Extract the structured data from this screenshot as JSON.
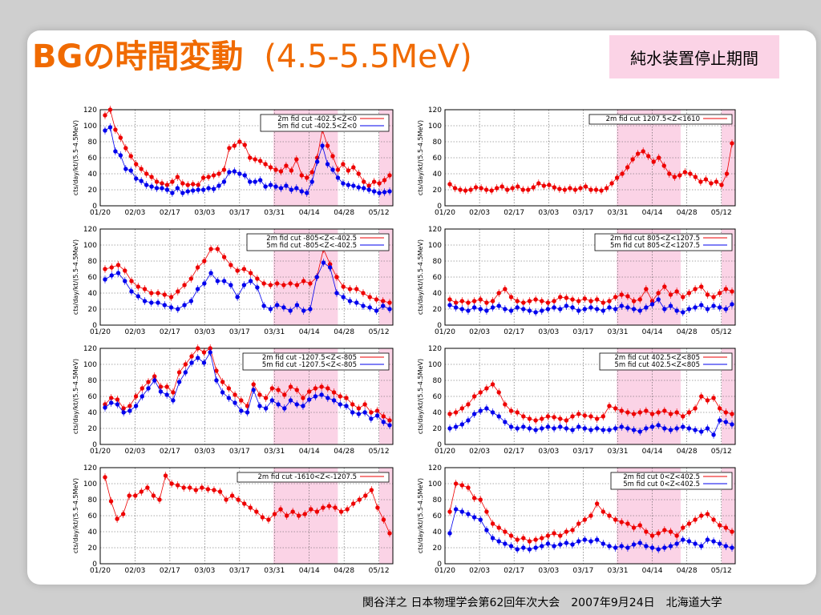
{
  "slide": {
    "title_main": "BGの時間変動",
    "title_sub": "(4.5-5.5MeV)",
    "note": "純水装置停止期間",
    "footer": "関谷洋之 日本物理学会第62回年次大会　2007年9月24日　北海道大学",
    "colors": {
      "title": "#f06a00",
      "red": "#ee0000",
      "blue": "#0000ee",
      "shade": "#fbd3e6"
    }
  },
  "chart_data": [
    {
      "type": "scatter",
      "ylabel": "cts/day/kt/(5.5-4.5MeV)",
      "ylim": [
        0,
        120
      ],
      "yticks": [
        0,
        20,
        40,
        60,
        80,
        100,
        120
      ],
      "xticks": [
        "01/20",
        "02/03",
        "02/17",
        "03/03",
        "03/17",
        "03/31",
        "04/14",
        "04/28",
        "05/12"
      ],
      "series": [
        {
          "name": "2m fid cut -402.5<Z<0",
          "color": "red",
          "values": [
            113,
            120,
            95,
            85,
            72,
            62,
            52,
            46,
            40,
            36,
            30,
            28,
            26,
            30,
            36,
            28,
            26,
            27,
            26,
            35,
            36,
            38,
            40,
            45,
            72,
            75,
            80,
            76,
            60,
            58,
            56,
            52,
            48,
            45,
            43,
            50,
            44,
            58,
            38,
            35,
            42,
            60,
            95,
            75,
            62,
            45,
            52,
            44,
            48,
            40,
            30,
            25,
            30,
            28,
            32,
            38
          ]
        },
        {
          "name": "5m fid cut -402.5<Z<0",
          "color": "blue",
          "values": [
            94,
            98,
            68,
            63,
            46,
            44,
            34,
            31,
            26,
            24,
            22,
            22,
            20,
            16,
            22,
            16,
            18,
            19,
            20,
            20,
            22,
            21,
            25,
            30,
            42,
            43,
            40,
            38,
            30,
            30,
            32,
            24,
            26,
            24,
            22,
            25,
            20,
            22,
            18,
            16,
            30,
            55,
            75,
            52,
            45,
            35,
            28,
            26,
            25,
            23,
            22,
            20,
            18,
            16,
            17,
            18
          ]
        }
      ]
    },
    {
      "type": "scatter",
      "ylabel": "cts/day/kt/(5.5-4.5MeV)",
      "ylim": [
        0,
        120
      ],
      "yticks": [
        0,
        20,
        40,
        60,
        80,
        100,
        120
      ],
      "xticks": [
        "01/20",
        "02/03",
        "02/17",
        "03/03",
        "03/17",
        "03/31",
        "04/14",
        "04/28",
        "05/12"
      ],
      "series": [
        {
          "name": "2m fid cut 1207.5<Z<1610",
          "color": "red",
          "values": [
            27,
            22,
            20,
            19,
            20,
            23,
            22,
            20,
            19,
            22,
            24,
            20,
            22,
            24,
            20,
            20,
            23,
            28,
            25,
            26,
            23,
            21,
            20,
            22,
            20,
            22,
            24,
            20,
            20,
            19,
            22,
            28,
            35,
            40,
            48,
            58,
            65,
            68,
            62,
            55,
            60,
            50,
            40,
            36,
            38,
            42,
            40,
            36,
            30,
            33,
            28,
            30,
            26,
            40,
            78
          ]
        }
      ]
    },
    {
      "type": "scatter",
      "ylabel": "cts/day/kt/(5.5-4.5MeV)",
      "ylim": [
        0,
        120
      ],
      "yticks": [
        0,
        20,
        40,
        60,
        80,
        100,
        120
      ],
      "xticks": [
        "01/20",
        "02/03",
        "02/17",
        "03/03",
        "03/17",
        "03/31",
        "04/14",
        "04/28",
        "05/12"
      ],
      "series": [
        {
          "name": "2m fid cut -805<Z<-402.5",
          "color": "red",
          "values": [
            70,
            72,
            75,
            68,
            55,
            48,
            45,
            40,
            40,
            38,
            35,
            42,
            50,
            58,
            72,
            80,
            95,
            95,
            85,
            75,
            68,
            70,
            65,
            58,
            52,
            50,
            52,
            50,
            52,
            50,
            55,
            52,
            60,
            95,
            76,
            60,
            48,
            45,
            45,
            40,
            35,
            32,
            30,
            28
          ]
        },
        {
          "name": "5m fid cut -805<Z<-402.5",
          "color": "blue",
          "values": [
            57,
            62,
            65,
            55,
            42,
            36,
            30,
            28,
            28,
            25,
            22,
            20,
            25,
            30,
            45,
            52,
            65,
            55,
            55,
            50,
            35,
            50,
            55,
            47,
            24,
            20,
            25,
            22,
            18,
            25,
            18,
            20,
            60,
            78,
            72,
            40,
            35,
            30,
            28,
            24,
            22,
            18,
            24,
            20
          ]
        }
      ]
    },
    {
      "type": "scatter",
      "ylabel": "cts/day/kt/(5.5-4.5MeV)",
      "ylim": [
        0,
        120
      ],
      "yticks": [
        0,
        20,
        40,
        60,
        80,
        100,
        120
      ],
      "xticks": [
        "01/20",
        "02/03",
        "02/17",
        "03/03",
        "03/17",
        "03/31",
        "04/14",
        "04/28",
        "05/12"
      ],
      "series": [
        {
          "name": "2m fid cut 805<Z<1207.5",
          "color": "red",
          "values": [
            32,
            28,
            30,
            28,
            30,
            32,
            28,
            30,
            40,
            45,
            35,
            30,
            28,
            30,
            32,
            30,
            28,
            30,
            35,
            34,
            32,
            30,
            33,
            30,
            32,
            28,
            30,
            35,
            38,
            36,
            30,
            32,
            45,
            30,
            40,
            48,
            38,
            42,
            35,
            40,
            45,
            48,
            38,
            35,
            40,
            45,
            42
          ]
        },
        {
          "name": "5m fid cut 805<Z<1207.5",
          "color": "blue",
          "values": [
            25,
            22,
            20,
            18,
            22,
            20,
            18,
            22,
            24,
            20,
            18,
            22,
            20,
            18,
            16,
            18,
            20,
            22,
            20,
            24,
            22,
            18,
            20,
            22,
            20,
            18,
            22,
            20,
            24,
            22,
            20,
            18,
            22,
            26,
            32,
            20,
            24,
            18,
            16,
            20,
            22,
            25,
            20,
            24,
            22,
            20,
            26
          ]
        }
      ]
    },
    {
      "type": "scatter",
      "ylabel": "cts/day/kt/(5.5-4.5MeV)",
      "ylim": [
        0,
        120
      ],
      "yticks": [
        0,
        20,
        40,
        60,
        80,
        100,
        120
      ],
      "xticks": [
        "01/20",
        "02/03",
        "02/17",
        "03/03",
        "03/17",
        "03/31",
        "04/14",
        "04/28",
        "05/12"
      ],
      "series": [
        {
          "name": "2m fid cut -1207.5<Z<-805",
          "color": "red",
          "values": [
            50,
            58,
            56,
            45,
            48,
            60,
            70,
            78,
            85,
            72,
            72,
            65,
            90,
            100,
            110,
            120,
            115,
            120,
            92,
            78,
            70,
            62,
            55,
            48,
            75,
            62,
            58,
            70,
            68,
            62,
            72,
            68,
            58,
            66,
            70,
            72,
            70,
            65,
            60,
            58,
            50,
            45,
            50,
            40,
            42,
            35,
            30
          ]
        },
        {
          "name": "5m fid cut -1207.5<Z<-805",
          "color": "blue",
          "values": [
            46,
            52,
            50,
            40,
            42,
            48,
            60,
            70,
            80,
            66,
            62,
            55,
            78,
            90,
            102,
            108,
            102,
            115,
            80,
            65,
            58,
            52,
            42,
            40,
            68,
            48,
            45,
            55,
            50,
            45,
            55,
            50,
            48,
            56,
            60,
            62,
            58,
            55,
            50,
            48,
            40,
            38,
            40,
            32,
            36,
            28,
            24
          ]
        }
      ]
    },
    {
      "type": "scatter",
      "ylabel": "cts/day/kt/(5.5-4.5MeV)",
      "ylim": [
        0,
        120
      ],
      "yticks": [
        0,
        20,
        40,
        60,
        80,
        100,
        120
      ],
      "xticks": [
        "01/20",
        "02/03",
        "02/17",
        "03/03",
        "03/17",
        "03/31",
        "04/14",
        "04/28",
        "05/12"
      ],
      "series": [
        {
          "name": "2m fid cut 402.5<Z<805",
          "color": "red",
          "values": [
            38,
            40,
            45,
            50,
            60,
            65,
            70,
            75,
            65,
            50,
            42,
            40,
            35,
            32,
            30,
            32,
            35,
            34,
            32,
            30,
            35,
            38,
            36,
            35,
            32,
            35,
            48,
            45,
            42,
            40,
            38,
            40,
            42,
            38,
            40,
            42,
            38,
            40,
            35,
            40,
            45,
            60,
            55,
            58,
            45,
            40,
            38
          ]
        },
        {
          "name": "5m fid cut 402.5<Z<805",
          "color": "blue",
          "values": [
            20,
            22,
            25,
            30,
            38,
            42,
            45,
            40,
            35,
            28,
            22,
            20,
            22,
            20,
            18,
            20,
            22,
            20,
            22,
            20,
            18,
            22,
            20,
            18,
            20,
            18,
            18,
            20,
            22,
            20,
            18,
            16,
            20,
            22,
            24,
            20,
            18,
            20,
            22,
            20,
            18,
            16,
            20,
            12,
            30,
            28,
            25
          ]
        }
      ]
    },
    {
      "type": "scatter",
      "ylabel": "cts/day/kt/(5.5-4.5MeV)",
      "ylim": [
        0,
        120
      ],
      "yticks": [
        0,
        20,
        40,
        60,
        80,
        100,
        120
      ],
      "xticks": [
        "01/20",
        "02/03",
        "02/17",
        "03/03",
        "03/17",
        "03/31",
        "04/14",
        "04/28",
        "05/12"
      ],
      "series": [
        {
          "name": "2m fid cut -1610<Z<-1207.5",
          "color": "red",
          "values": [
            108,
            78,
            56,
            62,
            85,
            85,
            90,
            95,
            85,
            80,
            110,
            100,
            98,
            95,
            95,
            92,
            95,
            93,
            92,
            90,
            80,
            85,
            80,
            75,
            70,
            65,
            58,
            55,
            62,
            68,
            60,
            65,
            60,
            62,
            68,
            65,
            70,
            72,
            70,
            65,
            68,
            75,
            80,
            85,
            92,
            70,
            55,
            38
          ]
        }
      ]
    },
    {
      "type": "scatter",
      "ylabel": "cts/day/kt/(5.5-4.5MeV)",
      "ylim": [
        0,
        120
      ],
      "yticks": [
        0,
        20,
        40,
        60,
        80,
        100,
        120
      ],
      "xticks": [
        "01/20",
        "02/03",
        "02/17",
        "03/03",
        "03/17",
        "03/31",
        "04/14",
        "04/28",
        "05/12"
      ],
      "series": [
        {
          "name": "2m fid cut 0<Z<402.5",
          "color": "red",
          "values": [
            65,
            100,
            98,
            95,
            82,
            80,
            65,
            50,
            45,
            40,
            35,
            30,
            32,
            28,
            30,
            32,
            35,
            38,
            35,
            40,
            42,
            50,
            55,
            60,
            75,
            65,
            60,
            55,
            52,
            50,
            45,
            48,
            40,
            35,
            38,
            42,
            40,
            35,
            45,
            50,
            55,
            60,
            62,
            55,
            48,
            45,
            40
          ]
        },
        {
          "name": "5m fid cut 0<Z<402.5",
          "color": "blue",
          "values": [
            38,
            68,
            65,
            62,
            58,
            55,
            42,
            32,
            28,
            25,
            22,
            18,
            20,
            18,
            20,
            22,
            25,
            22,
            24,
            26,
            24,
            28,
            30,
            28,
            30,
            25,
            22,
            20,
            22,
            20,
            24,
            26,
            22,
            20,
            18,
            20,
            22,
            25,
            30,
            28,
            25,
            22,
            30,
            28,
            25,
            22,
            20
          ]
        }
      ]
    }
  ]
}
